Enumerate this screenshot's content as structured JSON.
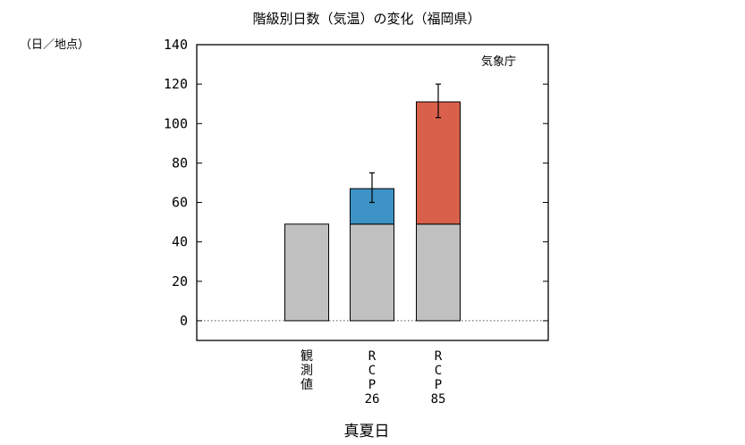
{
  "chart_data": {
    "type": "bar",
    "stacked": true,
    "title": "階級別日数（気温）の変化（福岡県）",
    "unit_label": "（日／地点）",
    "credit": "気象庁",
    "xlabel": "真夏日",
    "categories": [
      {
        "id": "obs",
        "label": [
          "観",
          "測",
          "値"
        ]
      },
      {
        "id": "rcp26",
        "label": [
          "R",
          "C",
          "P",
          "26"
        ]
      },
      {
        "id": "rcp85",
        "label": [
          "R",
          "C",
          "P",
          "85"
        ]
      }
    ],
    "series": [
      {
        "id": "base",
        "values": [
          49,
          49,
          49
        ],
        "color": "#c0c0c0"
      },
      {
        "id": "increase",
        "values": [
          0,
          18,
          62
        ],
        "colors": [
          "#c0c0c0",
          "#3d93c6",
          "#d9604b"
        ]
      }
    ],
    "totals": [
      49,
      67,
      111
    ],
    "error_bars": [
      null,
      {
        "low": 60,
        "high": 75
      },
      {
        "low": 103,
        "high": 120
      }
    ],
    "ylim": [
      -10,
      140
    ],
    "yticks": [
      0,
      20,
      40,
      60,
      80,
      100,
      120,
      140
    ],
    "zero_line": "dotted",
    "grid": false,
    "legend": "none"
  }
}
